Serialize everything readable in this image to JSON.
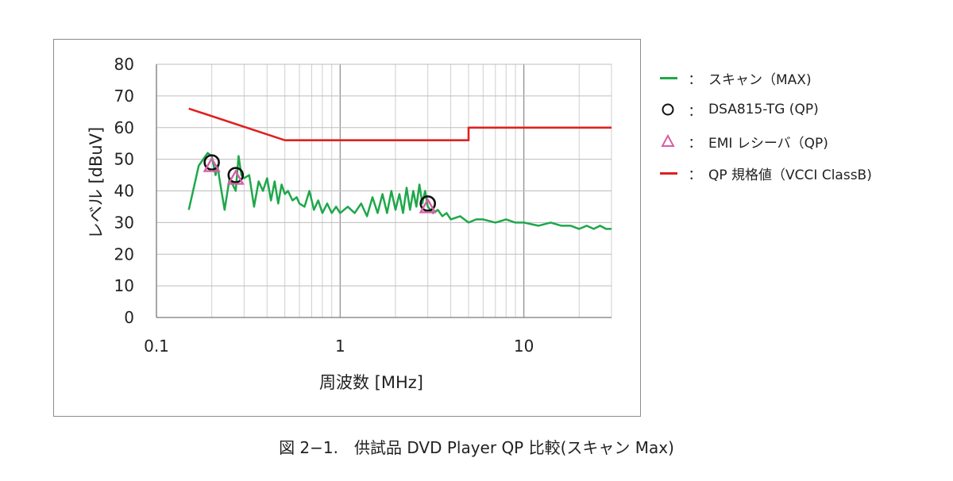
{
  "chart_data": {
    "type": "line",
    "xscale": "log",
    "xlim": [
      0.1,
      30
    ],
    "ylim": [
      0,
      80
    ],
    "yticks": [
      "0",
      "10",
      "20",
      "30",
      "40",
      "50",
      "60",
      "70",
      "80"
    ],
    "xticks": [
      "0.1",
      "1",
      "10"
    ],
    "xlabel": "周波数 [MHz]",
    "ylabel": "レベル [dBuV]",
    "grid": true,
    "legend_position": "right",
    "series": [
      {
        "name": "スキャン（MAX)",
        "kind": "line",
        "color": "#1ea84a",
        "x": [
          0.15,
          0.17,
          0.19,
          0.2,
          0.21,
          0.215,
          0.22,
          0.235,
          0.25,
          0.27,
          0.28,
          0.29,
          0.3,
          0.32,
          0.34,
          0.36,
          0.38,
          0.4,
          0.42,
          0.44,
          0.46,
          0.48,
          0.5,
          0.52,
          0.55,
          0.58,
          0.6,
          0.64,
          0.68,
          0.72,
          0.76,
          0.8,
          0.85,
          0.9,
          0.95,
          1.0,
          1.1,
          1.2,
          1.3,
          1.4,
          1.5,
          1.6,
          1.7,
          1.8,
          1.9,
          2.0,
          2.1,
          2.2,
          2.3,
          2.4,
          2.5,
          2.6,
          2.7,
          2.8,
          2.9,
          3.0,
          3.2,
          3.4,
          3.6,
          3.8,
          4.0,
          4.5,
          5.0,
          5.5,
          6.0,
          7.0,
          8.0,
          9.0,
          10.0,
          12.0,
          14.0,
          16.0,
          18.0,
          20.0,
          22.0,
          24.0,
          26.0,
          28.0,
          30.0
        ],
        "y": [
          34,
          48,
          52,
          51,
          45,
          48,
          44,
          34,
          44,
          40,
          51,
          45,
          44,
          45,
          35,
          43,
          40,
          44,
          37,
          43,
          36,
          42,
          39,
          40,
          37,
          38,
          36,
          35,
          40,
          34,
          37,
          33,
          36,
          33,
          35,
          33,
          35,
          33,
          36,
          32,
          38,
          33,
          39,
          33,
          40,
          34,
          39,
          33,
          41,
          34,
          40,
          35,
          42,
          36,
          40,
          35,
          33,
          34,
          32,
          33,
          31,
          32,
          30,
          31,
          31,
          30,
          31,
          30,
          30,
          29,
          30,
          29,
          29,
          28,
          29,
          28,
          29,
          28,
          28
        ]
      },
      {
        "name": "DSA815-TG (QP)",
        "kind": "marker-circle",
        "color": "#111111",
        "x": [
          0.2,
          0.27,
          3.0
        ],
        "y": [
          49,
          45,
          36
        ]
      },
      {
        "name": "EMI レシーバ（QP)",
        "kind": "marker-triangle",
        "color": "#d65fa6",
        "x": [
          0.2,
          0.27,
          3.0
        ],
        "y": [
          48,
          44,
          35
        ]
      },
      {
        "name": "QP 規格値（VCCI ClassB)",
        "kind": "line",
        "color": "#e02020",
        "x": [
          0.15,
          0.5,
          5.0,
          5.0,
          30.0
        ],
        "y": [
          66,
          56,
          56,
          60,
          60
        ]
      }
    ]
  },
  "legend": {
    "colon": "：",
    "items": [
      {
        "label": "スキャン（MAX)",
        "symbol": "line",
        "color": "#1ea84a"
      },
      {
        "label": "DSA815-TG (QP)",
        "symbol": "circle",
        "color": "#111111"
      },
      {
        "label": "EMI レシーバ（QP)",
        "symbol": "triangle",
        "color": "#d65fa6"
      },
      {
        "label": "QP 規格値（VCCI ClassB)",
        "symbol": "line",
        "color": "#e02020"
      }
    ]
  },
  "caption": "図 2−1.　供試品 DVD Player QP 比較(スキャン Max)"
}
